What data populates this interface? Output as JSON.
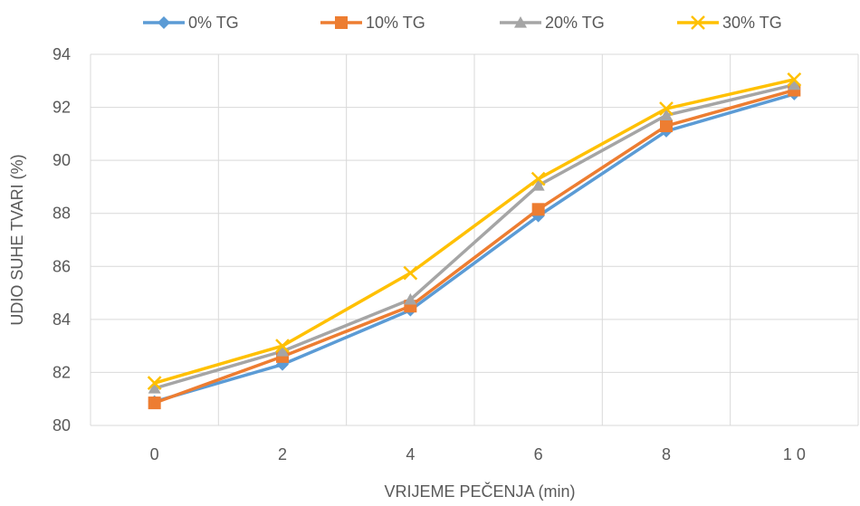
{
  "chart_data": {
    "type": "line",
    "title": "",
    "xlabel": "VRIJEME PEČENJA (min)",
    "ylabel": "UDIO SUHE TVARI (%)",
    "x": [
      0,
      2,
      4,
      6,
      8,
      10
    ],
    "x_tick_labels": [
      "0",
      "2",
      "4",
      "6",
      "8",
      "1 0"
    ],
    "ylim": [
      80,
      94
    ],
    "y_ticks": [
      80,
      82,
      84,
      86,
      88,
      90,
      92,
      94
    ],
    "grid": true,
    "legend_position": "top",
    "series": [
      {
        "name": "0% TG",
        "marker": "diamond",
        "color": "#5b9bd5",
        "values": [
          80.9,
          82.3,
          84.35,
          87.9,
          91.1,
          92.5
        ]
      },
      {
        "name": "10% TG",
        "marker": "square",
        "color": "#ed7d31",
        "values": [
          80.85,
          82.6,
          84.5,
          88.15,
          91.3,
          92.65
        ]
      },
      {
        "name": "20% TG",
        "marker": "triangle",
        "color": "#a5a5a5",
        "values": [
          81.4,
          82.8,
          84.75,
          89.05,
          91.7,
          92.85
        ]
      },
      {
        "name": "30% TG",
        "marker": "x",
        "color": "#ffc000",
        "values": [
          81.6,
          83.0,
          85.75,
          89.3,
          91.95,
          93.05
        ]
      }
    ]
  }
}
